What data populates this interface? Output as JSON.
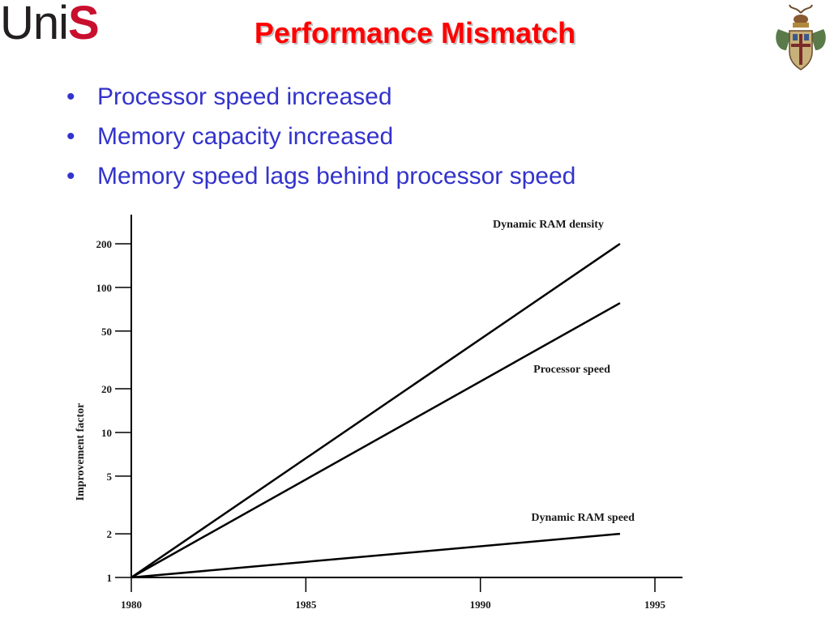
{
  "logo": {
    "uni": "Uni",
    "s": "S"
  },
  "slide": {
    "title": "Performance Mismatch",
    "bullets": [
      "Processor speed increased",
      "Memory capacity increased",
      "Memory speed lags behind processor speed"
    ]
  },
  "crest_icon": "university-crest-icon",
  "colors": {
    "title": "#ff0000",
    "bullets": "#3333cc",
    "logo_s": "#c8102e"
  },
  "chart_data": {
    "type": "line",
    "ylabel": "Improvement factor",
    "xlabel": "",
    "y_scale": "log",
    "xlim": [
      1980,
      1995
    ],
    "ylim": [
      1,
      200
    ],
    "x_ticks": [
      1980,
      1985,
      1990,
      1995
    ],
    "x_tick_labels": [
      "1980",
      "1985",
      "1990",
      "1995"
    ],
    "y_ticks": [
      1,
      2,
      5,
      10,
      20,
      50,
      100,
      200
    ],
    "y_tick_labels": [
      "1",
      "2",
      "5",
      "10",
      "20",
      "50",
      "100",
      "200"
    ],
    "grid": false,
    "series": [
      {
        "name": "Dynamic RAM density",
        "x": [
          1980,
          1994
        ],
        "y": [
          1,
          200
        ]
      },
      {
        "name": "Processor speed",
        "x": [
          1980,
          1994
        ],
        "y": [
          1,
          78
        ]
      },
      {
        "name": "Dynamic RAM speed",
        "x": [
          1980,
          1994
        ],
        "y": [
          1,
          2
        ]
      }
    ]
  }
}
